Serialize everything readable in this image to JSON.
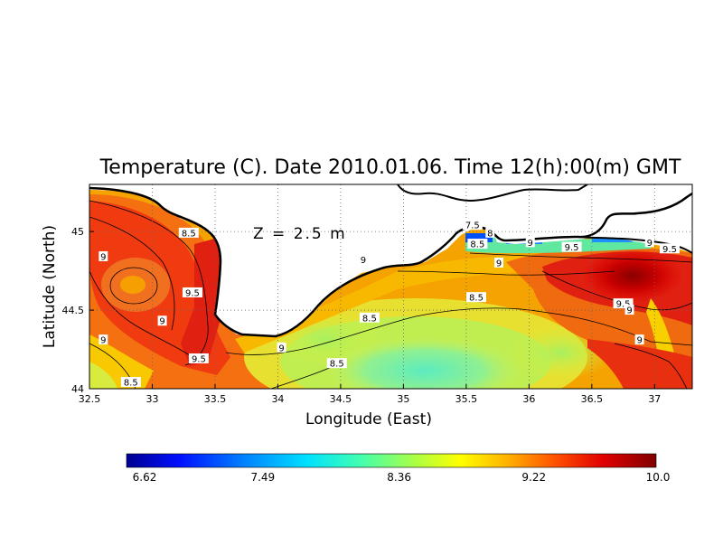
{
  "map": {
    "title": "Temperature (C). Date 2010.01.06. Time 12(h):00(m) GMT",
    "depth_label": "Z = 2.5 m",
    "xlabel": "Longitude (East)",
    "ylabel": "Latitude (North)",
    "x_ticks": [
      "32.5",
      "33",
      "33.5",
      "34",
      "34.5",
      "35",
      "35.5",
      "36",
      "36.5",
      "37"
    ],
    "y_ticks": [
      "44",
      "44.5",
      "45"
    ],
    "lon_range": [
      32.5,
      37.3
    ],
    "lat_range": [
      44.0,
      45.3
    ],
    "grid": "dotted",
    "colorbar": {
      "min": 6.62,
      "max": 10.0,
      "tick_labels": [
        "6.62",
        "7.49",
        "8.36",
        "9.22",
        "10.0"
      ],
      "colors": [
        "#000090",
        "#0010ff",
        "#0080ff",
        "#00e0ff",
        "#40ffb0",
        "#b0ff40",
        "#ffff00",
        "#ffb000",
        "#ff5000",
        "#e00000",
        "#800000"
      ]
    },
    "contour_labels": [
      {
        "text": "8.5",
        "lon": 32.83,
        "lat": 44.04
      },
      {
        "text": "9",
        "lon": 32.61,
        "lat": 44.84
      },
      {
        "text": "9",
        "lon": 32.61,
        "lat": 44.31
      },
      {
        "text": "9",
        "lon": 33.08,
        "lat": 44.43
      },
      {
        "text": "8.5",
        "lon": 33.29,
        "lat": 44.99
      },
      {
        "text": "9.5",
        "lon": 33.32,
        "lat": 44.61
      },
      {
        "text": "9.5",
        "lon": 33.37,
        "lat": 44.19
      },
      {
        "text": "9",
        "lon": 34.03,
        "lat": 44.26
      },
      {
        "text": "8.5",
        "lon": 34.47,
        "lat": 44.16
      },
      {
        "text": "8.5",
        "lon": 34.73,
        "lat": 44.45
      },
      {
        "text": "9",
        "lon": 34.68,
        "lat": 44.82
      },
      {
        "text": "8.5",
        "lon": 35.58,
        "lat": 44.58
      },
      {
        "text": "7.5",
        "lon": 35.55,
        "lat": 45.04
      },
      {
        "text": "8",
        "lon": 35.69,
        "lat": 44.99
      },
      {
        "text": "8.5",
        "lon": 35.59,
        "lat": 44.92
      },
      {
        "text": "9",
        "lon": 35.76,
        "lat": 44.8
      },
      {
        "text": "9",
        "lon": 36.01,
        "lat": 44.93
      },
      {
        "text": "9.5",
        "lon": 36.34,
        "lat": 44.9
      },
      {
        "text": "9",
        "lon": 36.96,
        "lat": 44.93
      },
      {
        "text": "9.5",
        "lon": 37.12,
        "lat": 44.89
      },
      {
        "text": "9.5",
        "lon": 36.75,
        "lat": 44.54
      },
      {
        "text": "9",
        "lon": 36.8,
        "lat": 44.5
      },
      {
        "text": "9",
        "lon": 36.88,
        "lat": 44.31
      }
    ]
  }
}
